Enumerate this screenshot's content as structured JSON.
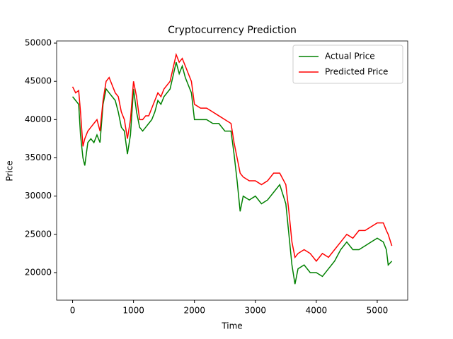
{
  "chart_data": {
    "type": "line",
    "title": "Cryptocurrency Prediction",
    "x_label": "Time",
    "y_label": "Price",
    "x": [
      0,
      50,
      100,
      130,
      170,
      200,
      250,
      300,
      350,
      400,
      450,
      500,
      550,
      600,
      650,
      700,
      750,
      800,
      850,
      900,
      950,
      1000,
      1050,
      1100,
      1150,
      1200,
      1250,
      1300,
      1350,
      1400,
      1450,
      1500,
      1600,
      1700,
      1750,
      1800,
      1850,
      1900,
      1950,
      2000,
      2100,
      2200,
      2300,
      2400,
      2500,
      2600,
      2650,
      2700,
      2750,
      2800,
      2900,
      3000,
      3100,
      3200,
      3300,
      3400,
      3500,
      3550,
      3600,
      3650,
      3700,
      3800,
      3900,
      4000,
      4100,
      4200,
      4300,
      4400,
      4500,
      4600,
      4700,
      4800,
      4900,
      5000,
      5100,
      5150,
      5180,
      5240
    ],
    "series": [
      {
        "name": "Actual Price",
        "color": "#008000",
        "values": [
          43000,
          42500,
          42000,
          38000,
          35000,
          34000,
          37000,
          37500,
          37000,
          38000,
          37000,
          42000,
          44000,
          43500,
          43000,
          42500,
          41000,
          39000,
          38500,
          35500,
          38000,
          44000,
          41000,
          39000,
          38500,
          39000,
          39500,
          40000,
          41000,
          42500,
          42000,
          43000,
          44000,
          47500,
          46000,
          47000,
          45500,
          44500,
          43500,
          40000,
          40000,
          40000,
          39500,
          39500,
          38500,
          38500,
          35500,
          32000,
          28000,
          30000,
          29500,
          30000,
          29000,
          29500,
          30500,
          31500,
          29000,
          25000,
          21000,
          18500,
          20500,
          21000,
          20000,
          20000,
          19500,
          20500,
          21500,
          23000,
          24000,
          23000,
          23000,
          23500,
          24000,
          24500,
          24000,
          23000,
          21000,
          21500
        ]
      },
      {
        "name": "Predicted Price",
        "color": "#ff0000",
        "values": [
          44300,
          43500,
          43800,
          41000,
          36500,
          37500,
          38500,
          39000,
          39500,
          40000,
          38500,
          42500,
          45000,
          45500,
          44500,
          43500,
          43000,
          41000,
          40000,
          37500,
          40000,
          45000,
          43000,
          40000,
          40000,
          40500,
          40500,
          41500,
          42500,
          43500,
          43000,
          44000,
          45000,
          48500,
          47500,
          48000,
          47000,
          46000,
          45000,
          42000,
          41500,
          41500,
          41000,
          40500,
          40000,
          39500,
          37000,
          35000,
          33000,
          32500,
          32000,
          32000,
          31500,
          32000,
          33000,
          33000,
          31500,
          28000,
          24000,
          22000,
          22500,
          23000,
          22500,
          21500,
          22500,
          22000,
          23000,
          24000,
          25000,
          24500,
          25500,
          25500,
          26000,
          26500,
          26500,
          25500,
          25000,
          23500
        ]
      }
    ],
    "xlim": [
      -262,
      5500
    ],
    "ylim": [
      16400,
      50280
    ],
    "xticks": [
      0,
      1000,
      2000,
      3000,
      4000,
      5000
    ],
    "yticks": [
      20000,
      25000,
      30000,
      35000,
      40000,
      45000,
      50000
    ],
    "legend": "upper right"
  }
}
